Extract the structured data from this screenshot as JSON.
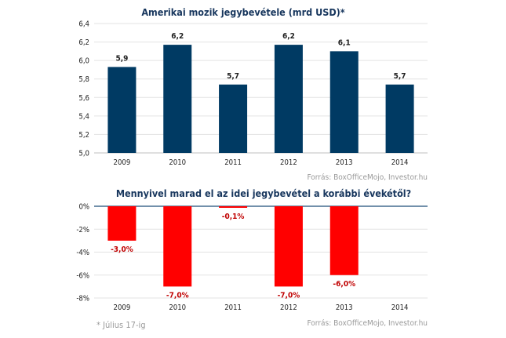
{
  "chart_data": [
    {
      "type": "bar",
      "title": "Amerikai mozik jegybevétele (mrd USD)*",
      "categories": [
        "2009",
        "2010",
        "2011",
        "2012",
        "2013",
        "2014"
      ],
      "values": [
        5.93,
        6.17,
        5.74,
        6.17,
        6.1,
        5.74
      ],
      "data_labels": [
        "5,9",
        "6,2",
        "5,7",
        "6,2",
        "6,1",
        "5,7"
      ],
      "ylim": [
        5.0,
        6.4
      ],
      "yticks": [
        "5,0",
        "5,2",
        "5,4",
        "5,6",
        "5,8",
        "6,0",
        "6,2",
        "6,4"
      ],
      "grid": true,
      "color": "#003a63",
      "source": "Forrás: BoxOfficeMojo, Investor.hu"
    },
    {
      "type": "bar",
      "title": "Mennyivel marad el az idei jegybevétel  a korábbi évekétől?",
      "categories": [
        "2009",
        "2010",
        "2011",
        "2012",
        "2013",
        "2014"
      ],
      "values": [
        -3.0,
        -7.0,
        -0.1,
        -7.0,
        -6.0,
        0
      ],
      "data_labels": [
        "-3,0%",
        "-7,0%",
        "-0,1%",
        "-7,0%",
        "-6,0%",
        ""
      ],
      "ylim": [
        -8,
        0
      ],
      "yticks": [
        "0%",
        "-2%",
        "-4%",
        "-6%",
        "-8%"
      ],
      "grid": true,
      "color": "#ff0000",
      "label_color": "#c00000",
      "source": "Forrás: BoxOfficeMojo, Investor.hu"
    }
  ],
  "footnote": "* Július 17-ig"
}
